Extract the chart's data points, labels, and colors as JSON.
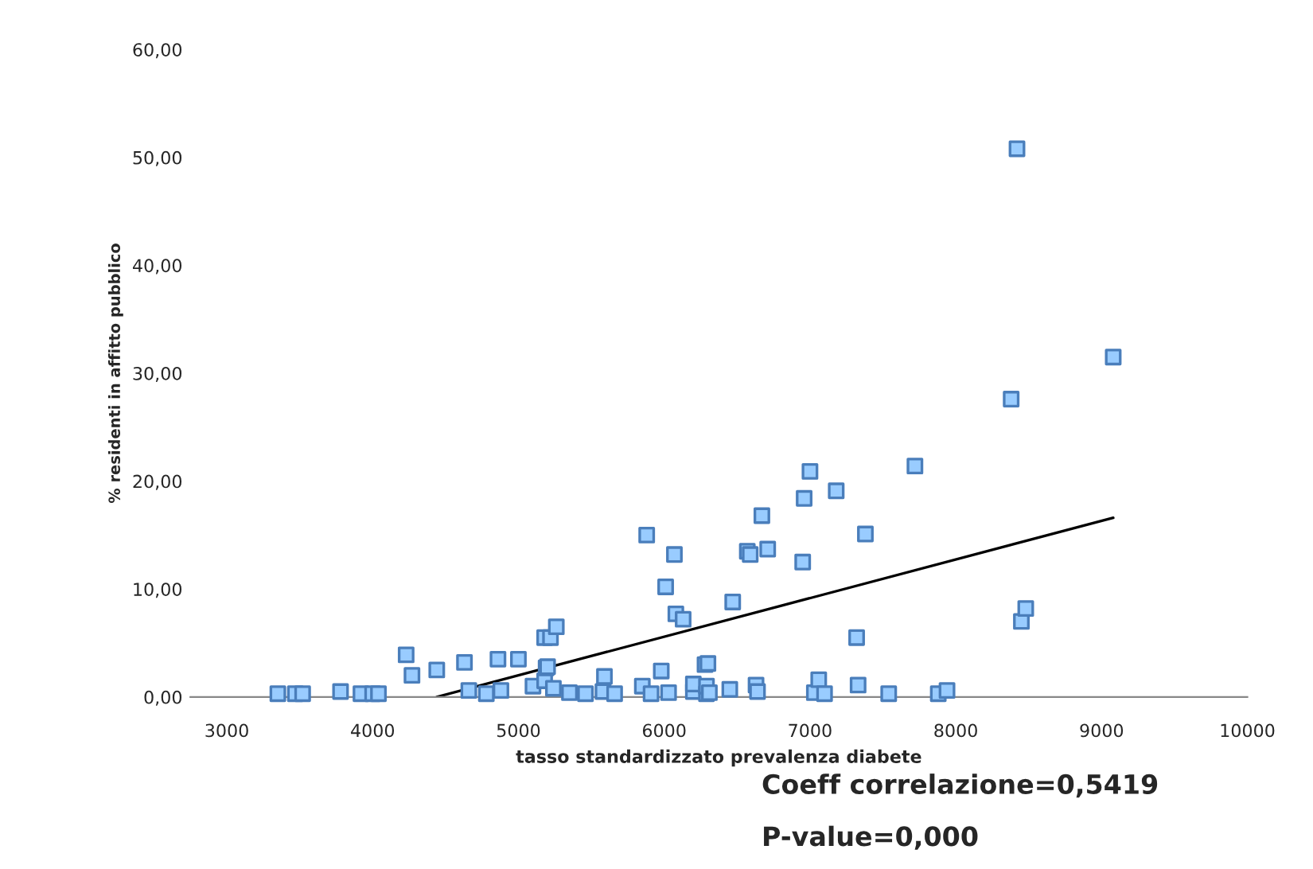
{
  "chart_data": {
    "type": "scatter",
    "xlabel": "tasso standardizzato prevalenza diabete",
    "ylabel": "% residenti in affitto pubblico",
    "xlim": [
      2750,
      10000
    ],
    "xticks": [
      3000,
      4000,
      5000,
      6000,
      7000,
      8000,
      9000,
      10000
    ],
    "ylim": [
      0,
      60
    ],
    "yticks": [
      {
        "value": 0,
        "label": "0,00"
      },
      {
        "value": 10,
        "label": "10,00"
      },
      {
        "value": 20,
        "label": "20,00"
      },
      {
        "value": 30,
        "label": "30,00"
      },
      {
        "value": 40,
        "label": "40,00"
      },
      {
        "value": 50,
        "label": "50,00"
      },
      {
        "value": 60,
        "label": "60,00"
      }
    ],
    "grid": false,
    "legend": false,
    "marker": "square",
    "series": [
      {
        "color": "#99ccff",
        "x": [
          3350,
          3470,
          3520,
          3780,
          3920,
          4000,
          4040,
          4230,
          4270,
          4440,
          4630,
          4660,
          4780,
          4860,
          4880,
          5000,
          5100,
          5180,
          5220,
          5260,
          5180,
          5190,
          5200,
          5240,
          5350,
          5460,
          5590,
          5580,
          5660,
          5850,
          5880,
          5910,
          5980,
          6010,
          6030,
          6070,
          6080,
          6130,
          6200,
          6200,
          6280,
          6300,
          6290,
          6290,
          6310,
          6450,
          6470,
          6570,
          6590,
          6630,
          6640,
          6670,
          6710,
          6950,
          6960,
          7000,
          7030,
          7060,
          7100,
          7180,
          7320,
          7330,
          7380,
          7540,
          7720,
          7880,
          7940,
          8380,
          8420,
          8450,
          8480,
          9080
        ],
        "values": [
          0.3,
          0.3,
          0.3,
          0.5,
          0.3,
          0.3,
          0.3,
          3.9,
          2.0,
          2.5,
          3.2,
          0.6,
          0.3,
          3.5,
          0.6,
          3.5,
          1.0,
          5.5,
          5.5,
          6.5,
          1.5,
          2.7,
          2.8,
          0.8,
          0.4,
          0.3,
          1.9,
          0.5,
          0.3,
          1.0,
          15.0,
          0.3,
          2.4,
          10.2,
          0.4,
          13.2,
          7.7,
          7.2,
          0.5,
          1.2,
          3.0,
          3.1,
          0.3,
          1.0,
          0.4,
          0.7,
          8.8,
          13.5,
          13.2,
          1.1,
          0.5,
          16.8,
          13.7,
          12.5,
          18.4,
          20.9,
          0.4,
          1.6,
          0.3,
          19.1,
          5.5,
          1.1,
          15.1,
          0.3,
          21.4,
          0.3,
          0.6,
          27.6,
          50.8,
          7.0,
          8.2,
          31.5
        ]
      },
      {
        "type": "line",
        "color": "#000000",
        "marker": "none",
        "x": [
          4440,
          9080
        ],
        "values": [
          0,
          16.6
        ]
      }
    ],
    "annotations": [
      "Coeff correlazione=0,5419",
      "P-value=0,000"
    ]
  }
}
